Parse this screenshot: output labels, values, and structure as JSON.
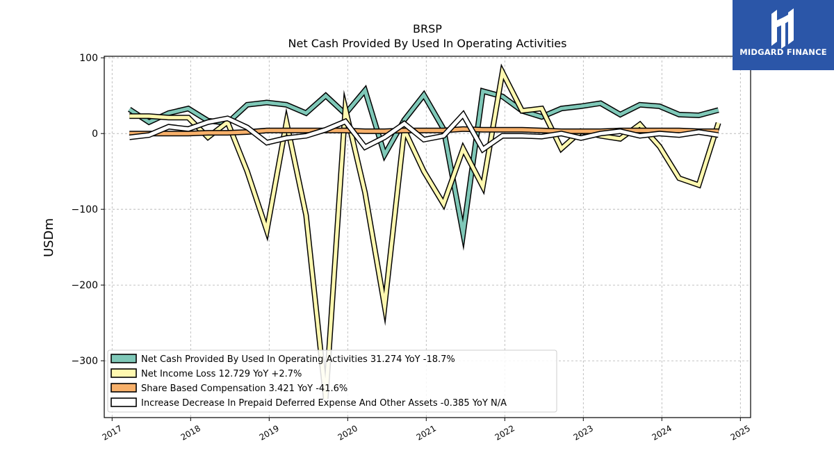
{
  "chart_data": {
    "type": "line",
    "ticker": "BRSP",
    "title": "Net Cash Provided By Used In Operating Activities",
    "ylabel": "USDm",
    "xlabel": "",
    "ylim": [
      -375,
      102
    ],
    "xlim": [
      2016.9,
      2025.13
    ],
    "yticks": [
      100,
      0,
      -100,
      -200,
      -300
    ],
    "ytick_labels": [
      "100",
      "0",
      "−100",
      "−200",
      "−300"
    ],
    "xticks": [
      2017,
      2018,
      2019,
      2020,
      2021,
      2022,
      2023,
      2024,
      2025
    ],
    "xtick_labels": [
      "2017",
      "2018",
      "2019",
      "2020",
      "2021",
      "2022",
      "2023",
      "2024",
      "2025"
    ],
    "grid": true,
    "legend_position": "lower-left",
    "x": [
      2017.22,
      2017.47,
      2017.72,
      2017.97,
      2018.22,
      2018.47,
      2018.72,
      2018.97,
      2019.22,
      2019.47,
      2019.72,
      2019.97,
      2020.22,
      2020.47,
      2020.72,
      2020.97,
      2021.22,
      2021.47,
      2021.72,
      2021.97,
      2022.22,
      2022.47,
      2022.72,
      2022.97,
      2023.22,
      2023.47,
      2023.72,
      2023.97,
      2024.22,
      2024.47,
      2024.72
    ],
    "series": [
      {
        "name": "Net Cash Provided By Used In Operating Activities",
        "legend": "Net Cash Provided By Used In Operating Activities  31.274 YoY -18.7%",
        "color": "#7fc8b8",
        "values": [
          32,
          15,
          27,
          33,
          17,
          14,
          38,
          41,
          38,
          27,
          50,
          26,
          57,
          -28,
          18,
          51,
          6,
          -132,
          56,
          49,
          30,
          22,
          33,
          36,
          40,
          25,
          38,
          36,
          25,
          24,
          31
        ]
      },
      {
        "name": "Net Income Loss",
        "legend": "Net Income Loss  12.729 YoY +2.7%",
        "color": "#fff8b0",
        "values": [
          23,
          23,
          21,
          21,
          -5,
          15,
          -50,
          -128,
          15,
          -108,
          -350,
          33,
          -78,
          -228,
          5,
          -50,
          -93,
          -20,
          -70,
          81,
          30,
          33,
          -20,
          3,
          -3,
          -7,
          12,
          -17,
          -59,
          -68,
          14
        ]
      },
      {
        "name": "Share Based Compensation",
        "legend": "Share Based Compensation  3.421 YoY -41.6%",
        "color": "#f7b06a",
        "values": [
          0,
          0,
          0,
          0,
          1,
          1,
          2,
          4,
          4,
          4,
          4,
          4,
          3,
          3,
          4,
          4,
          4,
          6,
          5,
          5,
          5,
          4,
          3,
          3,
          3,
          4,
          4,
          4,
          4,
          3,
          3
        ]
      },
      {
        "name": "Increase Decrease In Prepaid Deferred Expense And Other Assets",
        "legend": "Increase Decrease In Prepaid Deferred Expense And Other Assets  -0.385 YoY N/A",
        "color": "#ffffff",
        "values": [
          -5,
          -2,
          9,
          6,
          15,
          20,
          8,
          -12,
          -6,
          -3,
          5,
          16,
          -18,
          -5,
          13,
          -8,
          -3,
          25,
          -21,
          -3,
          -3,
          -4,
          0,
          -6,
          0,
          3,
          -3,
          0,
          -2,
          2,
          -2
        ]
      }
    ]
  },
  "logo": {
    "brand": "MIDGARD FINANCE",
    "icon": "midgard-m-logo-icon",
    "background": "#2b56a8"
  }
}
